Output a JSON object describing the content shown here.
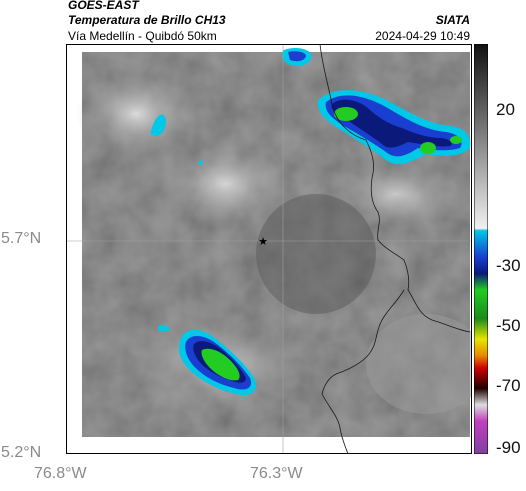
{
  "header": {
    "satellite": "GOES-EAST",
    "product": "Temperatura de Brillo CH13",
    "route": "Vía Medellín - Quibdó 50km",
    "agency": "SIATA",
    "timestamp": "2024-04-29 10:49"
  },
  "map": {
    "y_axis_labels": [
      "5.7°N",
      "5.2°N"
    ],
    "x_axis_labels": [
      "76.8°W",
      "76.3°W"
    ],
    "grid": true,
    "marker": "star-icon"
  },
  "colorbar": {
    "labels": [
      "20",
      "-30",
      "-50",
      "-70",
      "-90"
    ],
    "colors": {
      "cold_blue": "#0044cc",
      "cyan": "#00c8e6",
      "green": "#22cc22",
      "yellow": "#e6e600",
      "red": "#d00000",
      "magenta": "#c040c0"
    }
  }
}
